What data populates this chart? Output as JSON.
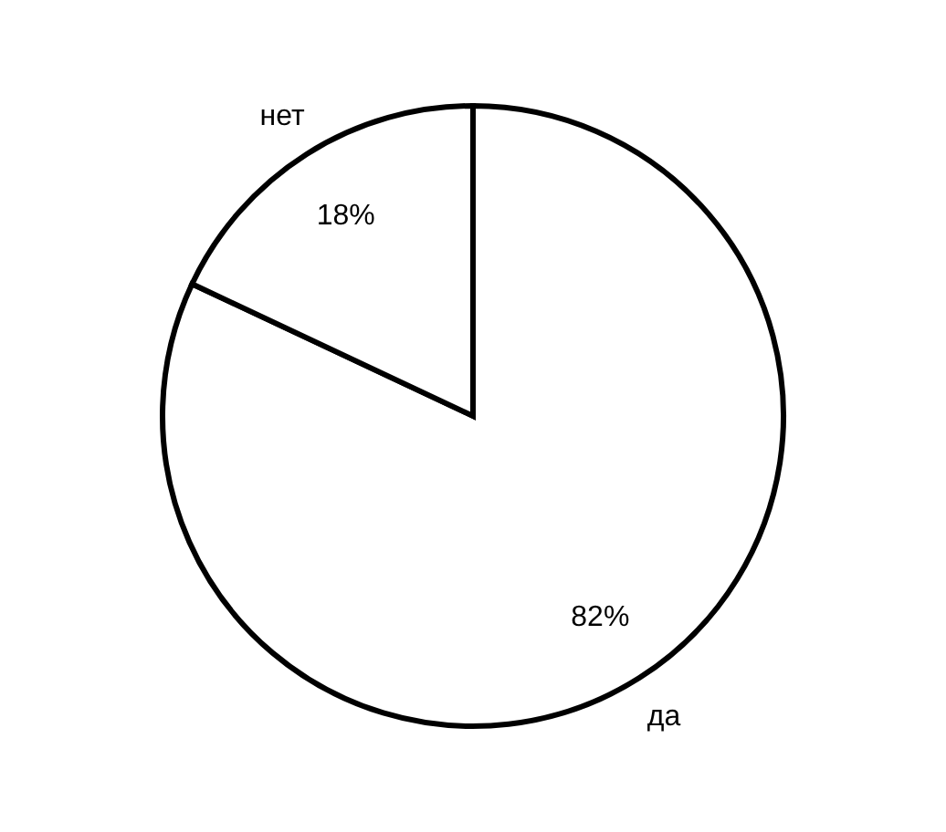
{
  "chart_data": {
    "type": "pie",
    "categories": [
      "да",
      "нет"
    ],
    "values": [
      82,
      18
    ],
    "colors": [
      "#ffffff",
      "#ffffff"
    ],
    "value_labels": [
      "82%",
      "18%"
    ]
  }
}
